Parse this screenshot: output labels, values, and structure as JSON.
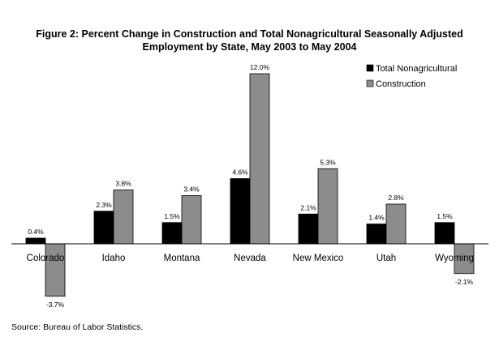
{
  "chart_data": {
    "type": "bar",
    "title": "Figure 2: Percent Change in Construction and Total Nonagricultural Seasonally Adjusted",
    "subtitle": "Employment by State, May 2003 to May 2004",
    "categories": [
      "Colorado",
      "Idaho",
      "Montana",
      "Nevada",
      "New Mexico",
      "Utah",
      "Wyoming"
    ],
    "series": [
      {
        "name": "Total Nonagricultural",
        "color": "#000000",
        "values": [
          0.4,
          2.3,
          1.5,
          4.6,
          2.1,
          1.4,
          1.5
        ],
        "labels": [
          "0.4%",
          "2.3%",
          "1.5%",
          "4.6%",
          "2.1%",
          "1.4%",
          "1.5%"
        ]
      },
      {
        "name": "Construction",
        "color": "#8c8c8c",
        "values": [
          -3.7,
          3.8,
          3.4,
          12.0,
          5.3,
          2.8,
          -2.1
        ],
        "labels": [
          "-3.7%",
          "3.8%",
          "3.4%",
          "12.0%",
          "5.3%",
          "2.8%",
          "-2.1%"
        ]
      }
    ],
    "xlabel": "",
    "ylabel": "",
    "ylim": [
      -3.7,
      12.0
    ],
    "grid": false,
    "legend_position": "top-right"
  },
  "source": "Source: Bureau of Labor Statistics."
}
